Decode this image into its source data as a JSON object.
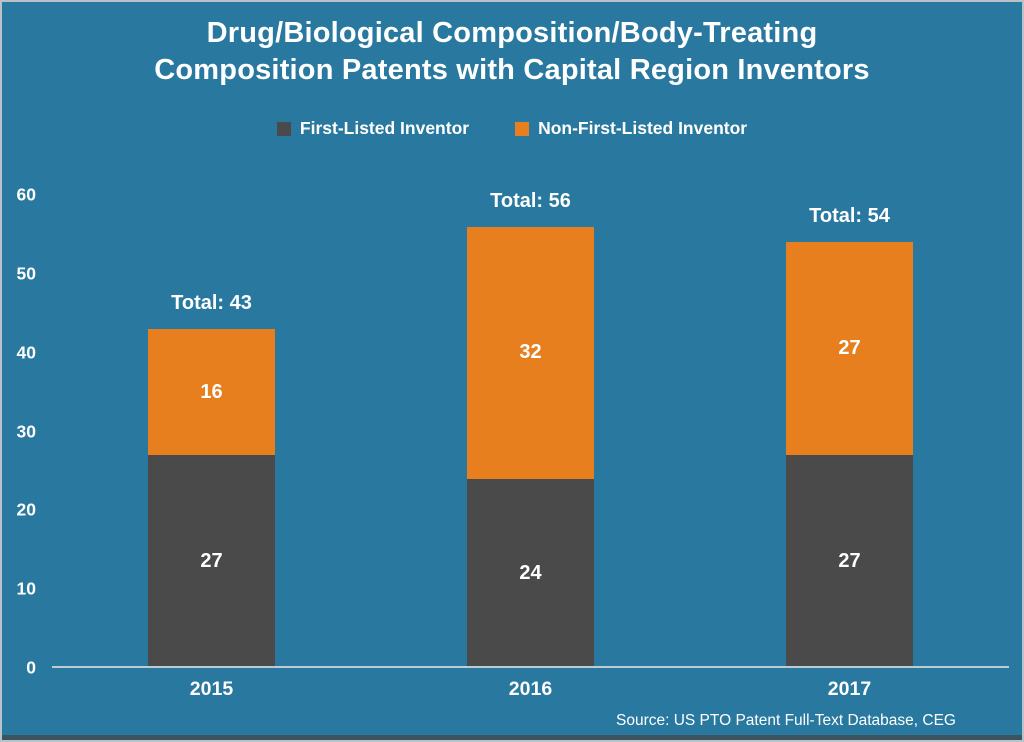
{
  "chart_data": {
    "type": "bar",
    "stacked": true,
    "title": "Drug/Biological Composition/Body-Treating Composition Patents with Capital Region Inventors",
    "title_lines": [
      "Drug/Biological Composition/Body-Treating",
      "Composition Patents with Capital Region Inventors"
    ],
    "categories": [
      "2015",
      "2016",
      "2017"
    ],
    "series": [
      {
        "name": "First-Listed Inventor",
        "color": "#4A4A4A",
        "values": [
          27,
          24,
          27
        ]
      },
      {
        "name": "Non-First-Listed Inventor",
        "color": "#E77F1E",
        "values": [
          16,
          32,
          27
        ]
      }
    ],
    "totals": [
      43,
      56,
      54
    ],
    "total_label_prefix": "Total: ",
    "yticks": [
      0,
      10,
      20,
      30,
      40,
      50,
      60
    ],
    "ylim": [
      0,
      60
    ],
    "xlabel": "",
    "ylabel": "",
    "grid": false,
    "legend_position": "top",
    "background_color": "#28789F",
    "axis_line_color": "#becbd2",
    "text_color": "#ffffff",
    "source": "Source: US PTO Patent Full-Text Database, CEG"
  }
}
